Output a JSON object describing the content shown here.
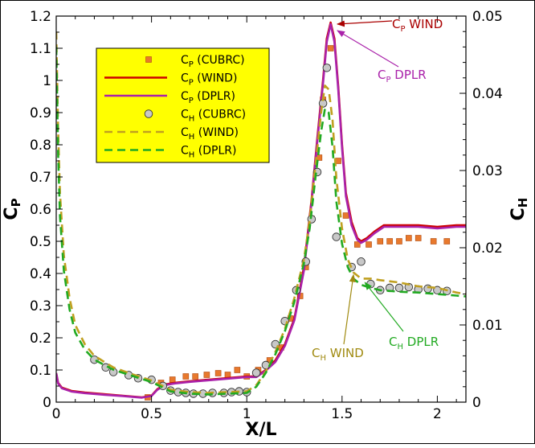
{
  "chart_data": {
    "type": "line",
    "title": "",
    "xlabel": "X/L",
    "ylabel_left": {
      "main": "C",
      "sub": "P"
    },
    "ylabel_right": {
      "main": "C",
      "sub": "H"
    },
    "xlim": [
      0,
      2.15
    ],
    "ylim_left": [
      0,
      1.2
    ],
    "ylim_right": [
      0,
      0.05
    ],
    "grid": false,
    "x_ticks": [
      "0",
      "0.5",
      "1",
      "1.5",
      "2"
    ],
    "x_tick_values": [
      0,
      0.5,
      1,
      1.5,
      2
    ],
    "y_ticks_left": [
      "0",
      "0.1",
      "0.2",
      "0.3",
      "0.4",
      "0.5",
      "0.6",
      "0.7",
      "0.8",
      "0.9",
      "1",
      "1.1",
      "1.2"
    ],
    "y_tick_values_left": [
      0,
      0.1,
      0.2,
      0.3,
      0.4,
      0.5,
      0.6,
      0.7,
      0.8,
      0.9,
      1.0,
      1.1,
      1.2
    ],
    "y_ticks_right": [
      "0",
      "0.01",
      "0.02",
      "0.03",
      "0.04",
      "0.05"
    ],
    "y_tick_values_right": [
      0,
      0.01,
      0.02,
      0.03,
      0.04,
      0.05
    ],
    "legend": {
      "placement": "top-left",
      "background": "#ffff00",
      "entries": [
        {
          "pre": "C",
          "sub": "P",
          "post": " (CUBRC)"
        },
        {
          "pre": "C",
          "sub": "P",
          "post": " (WIND)"
        },
        {
          "pre": "C",
          "sub": "P",
          "post": " (DPLR)"
        },
        {
          "pre": "C",
          "sub": "H",
          "post": " (CUBRC)"
        },
        {
          "pre": "C",
          "sub": "H",
          "post": " (WIND)"
        },
        {
          "pre": "C",
          "sub": "H",
          "post": " (DPLR)"
        }
      ]
    },
    "series": [
      {
        "name": "CP (CUBRC)",
        "kind": "scatter",
        "marker": "square",
        "axis": "left",
        "color": "#e8792d",
        "x": [
          0.48,
          0.55,
          0.61,
          0.68,
          0.73,
          0.79,
          0.85,
          0.9,
          0.95,
          1.0,
          1.06,
          1.12,
          1.18,
          1.23,
          1.28,
          1.31,
          1.34,
          1.38,
          1.4,
          1.42,
          1.44,
          1.48,
          1.52,
          1.58,
          1.64,
          1.7,
          1.75,
          1.8,
          1.85,
          1.9,
          1.98,
          2.05
        ],
        "y": [
          0.015,
          0.06,
          0.07,
          0.08,
          0.08,
          0.085,
          0.09,
          0.085,
          0.1,
          0.08,
          0.1,
          0.13,
          0.17,
          0.26,
          0.33,
          0.42,
          0.57,
          0.76,
          0.94,
          1.04,
          1.1,
          0.75,
          0.58,
          0.49,
          0.49,
          0.5,
          0.5,
          0.5,
          0.51,
          0.51,
          0.5,
          0.5
        ]
      },
      {
        "name": "CP (WIND)",
        "kind": "line",
        "axis": "left",
        "color": "#cc0000",
        "dash": "solid",
        "x": [
          0,
          0.01,
          0.03,
          0.08,
          0.15,
          0.25,
          0.35,
          0.45,
          0.5,
          0.53,
          0.57,
          0.62,
          0.7,
          0.8,
          0.9,
          1.0,
          1.05,
          1.1,
          1.15,
          1.2,
          1.25,
          1.3,
          1.34,
          1.37,
          1.4,
          1.42,
          1.44,
          1.46,
          1.48,
          1.5,
          1.52,
          1.55,
          1.58,
          1.6,
          1.63,
          1.67,
          1.72,
          1.8,
          1.9,
          2.0,
          2.1,
          2.15
        ],
        "y": [
          0.09,
          0.06,
          0.045,
          0.035,
          0.03,
          0.025,
          0.02,
          0.015,
          0.02,
          0.04,
          0.055,
          0.06,
          0.065,
          0.07,
          0.075,
          0.08,
          0.08,
          0.1,
          0.13,
          0.18,
          0.26,
          0.42,
          0.63,
          0.82,
          1.0,
          1.13,
          1.18,
          1.13,
          0.98,
          0.8,
          0.65,
          0.56,
          0.51,
          0.5,
          0.51,
          0.53,
          0.55,
          0.55,
          0.55,
          0.545,
          0.55,
          0.55
        ]
      },
      {
        "name": "CP (DPLR)",
        "kind": "line",
        "axis": "left",
        "color": "#aa22aa",
        "dash": "solid",
        "x": [
          0,
          0.01,
          0.03,
          0.08,
          0.15,
          0.25,
          0.35,
          0.45,
          0.5,
          0.53,
          0.57,
          0.62,
          0.7,
          0.8,
          0.9,
          1.0,
          1.05,
          1.1,
          1.15,
          1.2,
          1.25,
          1.3,
          1.34,
          1.37,
          1.4,
          1.42,
          1.44,
          1.46,
          1.48,
          1.5,
          1.52,
          1.55,
          1.58,
          1.6,
          1.63,
          1.67,
          1.72,
          1.8,
          1.9,
          2.0,
          2.1,
          2.15
        ],
        "y": [
          0.09,
          0.058,
          0.043,
          0.033,
          0.028,
          0.023,
          0.019,
          0.014,
          0.019,
          0.038,
          0.053,
          0.058,
          0.063,
          0.068,
          0.073,
          0.078,
          0.078,
          0.098,
          0.125,
          0.175,
          0.255,
          0.41,
          0.62,
          0.81,
          0.99,
          1.12,
          1.175,
          1.12,
          0.97,
          0.79,
          0.64,
          0.55,
          0.505,
          0.495,
          0.505,
          0.525,
          0.545,
          0.545,
          0.545,
          0.54,
          0.545,
          0.545
        ]
      },
      {
        "name": "CH (CUBRC)",
        "kind": "scatter",
        "marker": "circle",
        "axis": "right",
        "color": "#c8c8c8",
        "x": [
          0.2,
          0.26,
          0.3,
          0.38,
          0.43,
          0.5,
          0.56,
          0.6,
          0.64,
          0.68,
          0.72,
          0.77,
          0.82,
          0.88,
          0.92,
          0.96,
          1.0,
          1.05,
          1.1,
          1.15,
          1.2,
          1.26,
          1.31,
          1.34,
          1.37,
          1.4,
          1.42,
          1.47,
          1.55,
          1.6,
          1.65,
          1.7,
          1.75,
          1.8,
          1.85,
          1.9,
          1.95,
          2.0,
          2.05
        ],
        "y": [
          0.0055,
          0.0045,
          0.0039,
          0.0035,
          0.0031,
          0.0029,
          0.0021,
          0.0015,
          0.0013,
          0.0012,
          0.0011,
          0.0011,
          0.0012,
          0.0012,
          0.0013,
          0.0014,
          0.0013,
          0.0038,
          0.0048,
          0.0075,
          0.0105,
          0.0145,
          0.0182,
          0.0237,
          0.0298,
          0.0387,
          0.0433,
          0.0214,
          0.0175,
          0.0182,
          0.0153,
          0.0145,
          0.0148,
          0.0148,
          0.0149,
          0.0146,
          0.0147,
          0.0145,
          0.0144
        ]
      },
      {
        "name": "CH (WIND)",
        "kind": "line",
        "axis": "right",
        "color": "#c0a020",
        "dash": "dashed",
        "x": [
          0,
          0.01,
          0.02,
          0.04,
          0.07,
          0.1,
          0.15,
          0.2,
          0.3,
          0.4,
          0.5,
          0.55,
          0.6,
          0.7,
          0.8,
          0.9,
          1.0,
          1.05,
          1.1,
          1.15,
          1.2,
          1.25,
          1.3,
          1.33,
          1.36,
          1.39,
          1.41,
          1.43,
          1.45,
          1.47,
          1.5,
          1.53,
          1.56,
          1.6,
          1.65,
          1.7,
          1.8,
          1.9,
          2.0,
          2.1,
          2.15
        ],
        "y": [
          0.048,
          0.035,
          0.027,
          0.019,
          0.0135,
          0.01,
          0.0075,
          0.006,
          0.0045,
          0.0036,
          0.0028,
          0.0022,
          0.0016,
          0.0013,
          0.0012,
          0.0013,
          0.0014,
          0.0022,
          0.004,
          0.0065,
          0.0095,
          0.0135,
          0.0185,
          0.0235,
          0.0305,
          0.0375,
          0.041,
          0.0405,
          0.0365,
          0.029,
          0.0225,
          0.0185,
          0.0168,
          0.016,
          0.016,
          0.0158,
          0.0155,
          0.015,
          0.0148,
          0.0142,
          0.014
        ]
      },
      {
        "name": "CH (DPLR)",
        "kind": "line",
        "axis": "right",
        "color": "#22aa22",
        "dash": "dashed",
        "x": [
          0,
          0.01,
          0.02,
          0.04,
          0.07,
          0.1,
          0.15,
          0.2,
          0.3,
          0.4,
          0.5,
          0.55,
          0.6,
          0.7,
          0.8,
          0.9,
          1.0,
          1.05,
          1.1,
          1.15,
          1.2,
          1.25,
          1.3,
          1.33,
          1.36,
          1.39,
          1.41,
          1.43,
          1.45,
          1.47,
          1.5,
          1.53,
          1.56,
          1.6,
          1.65,
          1.7,
          1.8,
          1.9,
          2.0,
          2.1,
          2.15
        ],
        "y": [
          0.046,
          0.032,
          0.024,
          0.017,
          0.012,
          0.009,
          0.0068,
          0.0055,
          0.0042,
          0.0034,
          0.0026,
          0.002,
          0.0014,
          0.0011,
          0.001,
          0.0011,
          0.0012,
          0.002,
          0.0038,
          0.0062,
          0.0092,
          0.013,
          0.018,
          0.0225,
          0.029,
          0.035,
          0.038,
          0.0375,
          0.033,
          0.026,
          0.0205,
          0.0175,
          0.016,
          0.0152,
          0.0148,
          0.0145,
          0.0143,
          0.0142,
          0.014,
          0.0138,
          0.0137
        ]
      }
    ],
    "annotations": [
      {
        "pre": "C",
        "sub": "P",
        "post": " WIND",
        "color": "#aa0000",
        "target": [
          1.45,
          1.18
        ],
        "axis": "left"
      },
      {
        "pre": "C",
        "sub": "P",
        "post": " DPLR",
        "color": "#aa22aa",
        "target": [
          1.45,
          1.16
        ],
        "axis": "left"
      },
      {
        "pre": "C",
        "sub": "H",
        "post": " WIND",
        "color": "#a08a10",
        "target": [
          1.56,
          0.0165
        ],
        "axis": "right"
      },
      {
        "pre": "C",
        "sub": "H",
        "post": " DPLR",
        "color": "#22aa22",
        "target": [
          1.62,
          0.0155
        ],
        "axis": "right"
      }
    ]
  }
}
